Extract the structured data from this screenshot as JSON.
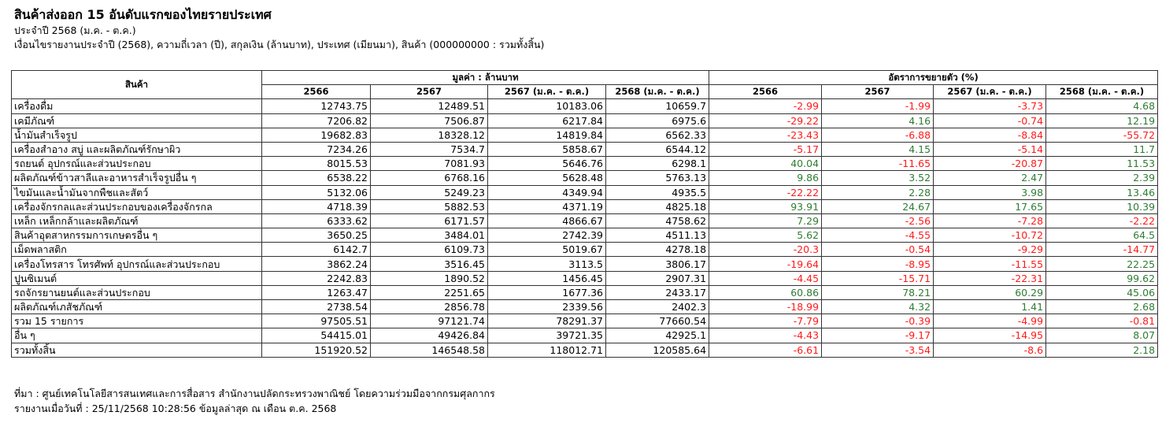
{
  "header": {
    "title": "สินค้าส่งออก 15 อันดับแรกของไทยรายประเทศ",
    "period": "ประจำปี 2568 (ม.ค. - ต.ค.)",
    "conditions": "เงื่อนไขรายงานประจำปี (2568), ความถี่เวลา (ปี), สกุลเงิน (ล้านบาท), ประเทศ (เมียนมา), สินค้า (000000000 : รวมทั้งสิ้น)"
  },
  "table": {
    "product_header": "สินค้า",
    "value_group": "มูลค่า : ล้านบาท",
    "growth_group": "อัตราการขยายตัว (%)",
    "columns": [
      "2566",
      "2567",
      "2567 (ม.ค. - ต.ค.)",
      "2568 (ม.ค. - ต.ค.)"
    ],
    "colors": {
      "positive": "#2e7d32",
      "negative": "#ff1a1a"
    },
    "rows": [
      {
        "name": "เครื่องดื่ม",
        "values": [
          "12743.75",
          "12489.51",
          "10183.06",
          "10659.7"
        ],
        "growth": [
          "-2.99",
          "-1.99",
          "-3.73",
          "4.68"
        ]
      },
      {
        "name": "เคมีภัณฑ์",
        "values": [
          "7206.82",
          "7506.87",
          "6217.84",
          "6975.6"
        ],
        "growth": [
          "-29.22",
          "4.16",
          "-0.74",
          "12.19"
        ]
      },
      {
        "name": "น้ำมันสำเร็จรูป",
        "values": [
          "19682.83",
          "18328.12",
          "14819.84",
          "6562.33"
        ],
        "growth": [
          "-23.43",
          "-6.88",
          "-8.84",
          "-55.72"
        ]
      },
      {
        "name": "เครื่องสำอาง สบู่ และผลิตภัณฑ์รักษาผิว",
        "values": [
          "7234.26",
          "7534.7",
          "5858.67",
          "6544.12"
        ],
        "growth": [
          "-5.17",
          "4.15",
          "-5.14",
          "11.7"
        ]
      },
      {
        "name": "รถยนต์ อุปกรณ์และส่วนประกอบ",
        "values": [
          "8015.53",
          "7081.93",
          "5646.76",
          "6298.1"
        ],
        "growth": [
          "40.04",
          "-11.65",
          "-20.87",
          "11.53"
        ]
      },
      {
        "name": "ผลิตภัณฑ์ข้าวสาลีและอาหารสำเร็จรูปอื่น ๆ",
        "values": [
          "6538.22",
          "6768.16",
          "5628.48",
          "5763.13"
        ],
        "growth": [
          "9.86",
          "3.52",
          "2.47",
          "2.39"
        ]
      },
      {
        "name": "ไขมันและน้ำมันจากพืชและสัตว์",
        "values": [
          "5132.06",
          "5249.23",
          "4349.94",
          "4935.5"
        ],
        "growth": [
          "-22.22",
          "2.28",
          "3.98",
          "13.46"
        ]
      },
      {
        "name": "เครื่องจักรกลและส่วนประกอบของเครื่องจักรกล",
        "values": [
          "4718.39",
          "5882.53",
          "4371.19",
          "4825.18"
        ],
        "growth": [
          "93.91",
          "24.67",
          "17.65",
          "10.39"
        ]
      },
      {
        "name": "เหล็ก เหล็กกล้าและผลิตภัณฑ์",
        "values": [
          "6333.62",
          "6171.57",
          "4866.67",
          "4758.62"
        ],
        "growth": [
          "7.29",
          "-2.56",
          "-7.28",
          "-2.22"
        ]
      },
      {
        "name": "สินค้าอุตสาหกรรมการเกษตรอื่น ๆ",
        "values": [
          "3650.25",
          "3484.01",
          "2742.39",
          "4511.13"
        ],
        "growth": [
          "5.62",
          "-4.55",
          "-10.72",
          "64.5"
        ]
      },
      {
        "name": "เม็ดพลาสติก",
        "values": [
          "6142.7",
          "6109.73",
          "5019.67",
          "4278.18"
        ],
        "growth": [
          "-20.3",
          "-0.54",
          "-9.29",
          "-14.77"
        ]
      },
      {
        "name": "เครื่องโทรสาร โทรศัพท์ อุปกรณ์และส่วนประกอบ",
        "values": [
          "3862.24",
          "3516.45",
          "3113.5",
          "3806.17"
        ],
        "growth": [
          "-19.64",
          "-8.95",
          "-11.55",
          "22.25"
        ]
      },
      {
        "name": "ปูนซิเมนต์",
        "values": [
          "2242.83",
          "1890.52",
          "1456.45",
          "2907.31"
        ],
        "growth": [
          "-4.45",
          "-15.71",
          "-22.31",
          "99.62"
        ]
      },
      {
        "name": "รถจักรยานยนต์และส่วนประกอบ",
        "values": [
          "1263.47",
          "2251.65",
          "1677.36",
          "2433.17"
        ],
        "growth": [
          "60.86",
          "78.21",
          "60.29",
          "45.06"
        ]
      },
      {
        "name": "ผลิตภัณฑ์เภสัชภัณฑ์",
        "values": [
          "2738.54",
          "2856.78",
          "2339.56",
          "2402.3"
        ],
        "growth": [
          "-18.99",
          "4.32",
          "1.41",
          "2.68"
        ]
      },
      {
        "name": "รวม 15 รายการ",
        "values": [
          "97505.51",
          "97121.74",
          "78291.37",
          "77660.54"
        ],
        "growth": [
          "-7.79",
          "-0.39",
          "-4.99",
          "-0.81"
        ]
      },
      {
        "name": "อื่น ๆ",
        "values": [
          "54415.01",
          "49426.84",
          "39721.35",
          "42925.1"
        ],
        "growth": [
          "-4.43",
          "-9.17",
          "-14.95",
          "8.07"
        ]
      },
      {
        "name": "รวมทั้งสิ้น",
        "values": [
          "151920.52",
          "146548.58",
          "118012.71",
          "120585.64"
        ],
        "growth": [
          "-6.61",
          "-3.54",
          "-8.6",
          "2.18"
        ]
      }
    ]
  },
  "footer": {
    "source": "ที่มา : ศูนย์เทคโนโลยีสารสนเทศและการสื่อสาร สำนักงานปลัดกระทรวงพาณิชย์ โดยความร่วมมือจากกรมศุลกากร",
    "report_date": "รายงานเมื่อวันที่ : 25/11/2568 10:28:56 ข้อมูลล่าสุด ณ เดือน ต.ค. 2568"
  }
}
